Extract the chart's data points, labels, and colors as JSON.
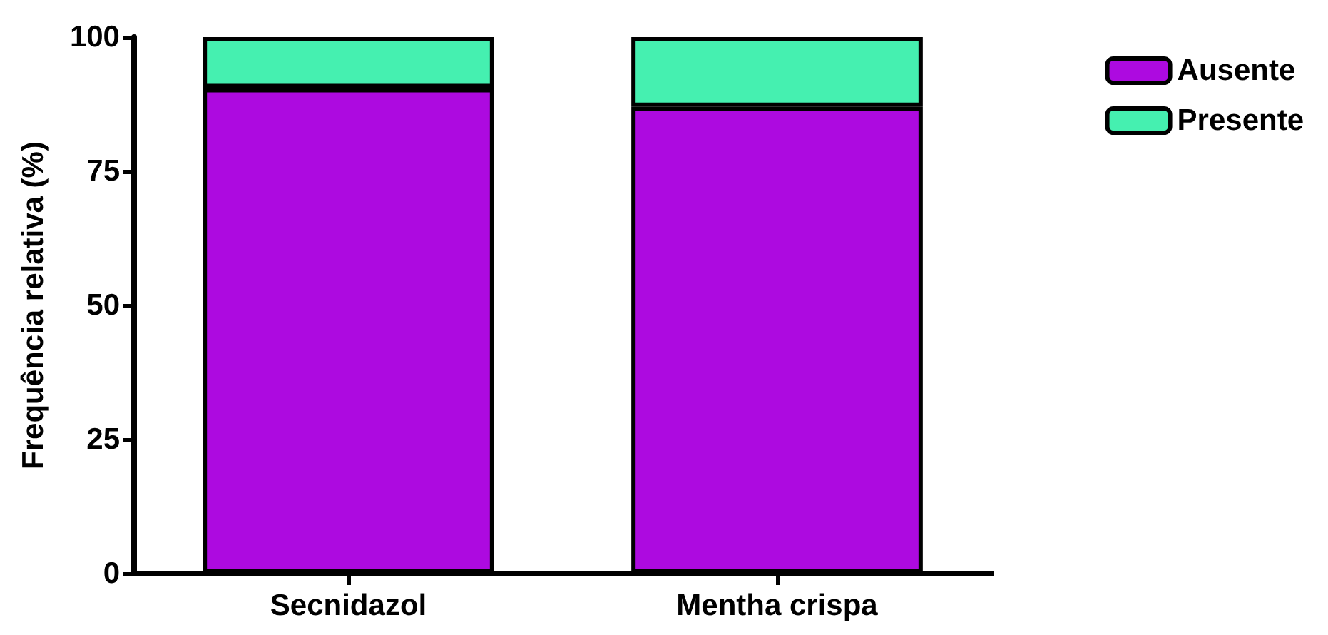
{
  "chart_data": {
    "type": "bar",
    "ylabel": "Frequência relativa (%)",
    "categories": [
      "Secnidazol",
      "Mentha crispa"
    ],
    "series": [
      {
        "name": "Ausente",
        "color": "#ad0ae0",
        "values": [
          90.5,
          87
        ]
      },
      {
        "name": "Presente",
        "color": "#45f0b0",
        "values": [
          9.5,
          13
        ]
      }
    ],
    "stacked": true,
    "ylim": [
      0,
      100
    ],
    "yticks": [
      0,
      25,
      50,
      75,
      100
    ],
    "grid": false,
    "legend": "top right"
  }
}
